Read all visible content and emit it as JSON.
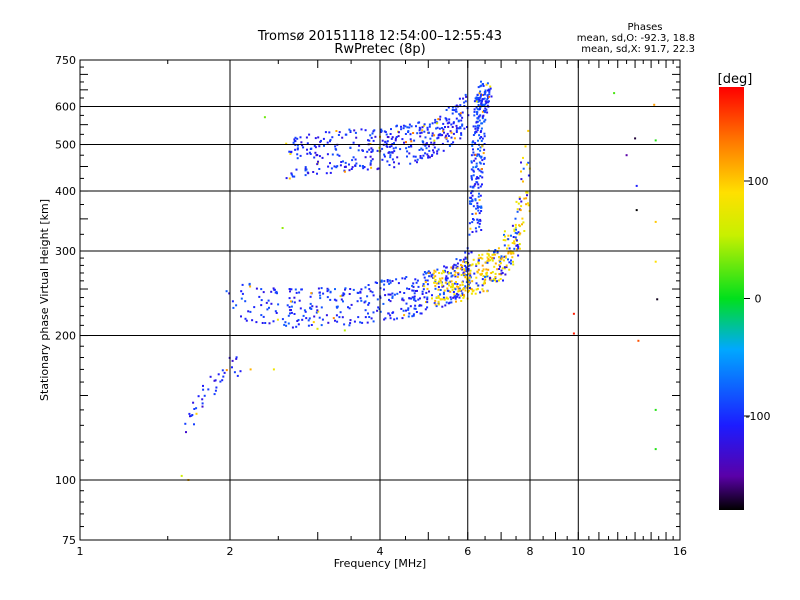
{
  "chart_data": {
    "type": "scatter",
    "title": "Tromsø 20151118 12:54:00–12:55:43",
    "subtitle": "RwPretec (8p)",
    "phase_box": {
      "heading": "Phases",
      "line1": "mean, sd,O: -92.3, 18.8",
      "line2": "mean, sd,X:  91.7, 22.3"
    },
    "xlabel": "Frequency [MHz]",
    "ylabel": "Stationary phase Virtual Height [km]",
    "xscale": "log",
    "yscale": "log",
    "xlim": [
      1,
      16
    ],
    "ylim": [
      75,
      750
    ],
    "x_ticks": [
      1,
      2,
      4,
      6,
      8,
      10,
      16
    ],
    "y_ticks": [
      75,
      100,
      200,
      300,
      400,
      500,
      600,
      750
    ],
    "x_gridlines": [
      2,
      4,
      6,
      8,
      10
    ],
    "y_gridlines": [
      100,
      200,
      300,
      400,
      500,
      600
    ],
    "grid": true,
    "colorbar": {
      "label": "[deg]",
      "range": [
        -180,
        180
      ],
      "ticks": [
        100,
        0,
        -100
      ]
    },
    "series": [
      {
        "traces": [
          {
            "kind": "o_F",
            "freq": [
              2.6,
              3.0,
              3.5,
              4.0,
              4.5,
              5.0,
              5.4,
              5.7,
              5.9,
              6.0
            ],
            "height": [
              450,
              460,
              468,
              472,
              480,
              495,
              515,
              540,
              565,
              590
            ],
            "phase": -105
          },
          {
            "kind": "o_F",
            "freq": [
              1.95,
              2.1,
              2.3,
              2.6,
              3.0,
              3.5,
              4.0,
              4.5,
              5.0,
              5.5,
              5.8,
              6.0,
              6.1
            ],
            "height": [
              235,
              226,
              220,
              218,
              219,
              222,
              226,
              231,
              237,
              246,
              255,
              268,
              290
            ],
            "phase": -100
          },
          {
            "kind": "o_F_cusp",
            "freq": [
              6.2,
              6.25,
              6.3,
              6.35,
              6.4,
              6.45,
              6.5
            ],
            "height": [
              330,
              400,
              470,
              540,
              590,
              620,
              640
            ],
            "phase": -95
          },
          {
            "kind": "x_F",
            "freq": [
              5.0,
              5.5,
              6.0,
              6.5,
              7.0,
              7.3,
              7.6,
              7.8,
              7.9
            ],
            "height": [
              240,
              245,
              252,
              262,
              275,
              292,
              320,
              380,
              480
            ],
            "phase": 95
          },
          {
            "kind": "E",
            "freq": [
              1.6,
              1.7,
              1.8,
              2.0,
              2.1
            ],
            "height": [
              120,
              135,
              150,
              165,
              172
            ],
            "phase": -110
          }
        ],
        "scattered": [
          {
            "freq": 2.35,
            "height": 570,
            "phase": 30
          },
          {
            "freq": 11.8,
            "height": 640,
            "phase": 20
          },
          {
            "freq": 14.2,
            "height": 605,
            "phase": 120
          },
          {
            "freq": 13.0,
            "height": 515,
            "phase": -170
          },
          {
            "freq": 14.3,
            "height": 510,
            "phase": 10
          },
          {
            "freq": 12.5,
            "height": 475,
            "phase": -150
          },
          {
            "freq": 13.1,
            "height": 410,
            "phase": -110
          },
          {
            "freq": 13.1,
            "height": 365,
            "phase": -180
          },
          {
            "freq": 14.3,
            "height": 345,
            "phase": 100
          },
          {
            "freq": 14.3,
            "height": 285,
            "phase": 90
          },
          {
            "freq": 14.4,
            "height": 238,
            "phase": -175
          },
          {
            "freq": 9.8,
            "height": 222,
            "phase": 170
          },
          {
            "freq": 9.8,
            "height": 202,
            "phase": 170
          },
          {
            "freq": 13.2,
            "height": 195,
            "phase": 150
          },
          {
            "freq": 14.3,
            "height": 140,
            "phase": 10
          },
          {
            "freq": 14.3,
            "height": 116,
            "phase": 10
          },
          {
            "freq": 1.6,
            "height": 102,
            "phase": 60
          },
          {
            "freq": 1.65,
            "height": 100,
            "phase": 110
          },
          {
            "freq": 2.2,
            "height": 170,
            "phase": 110
          },
          {
            "freq": 2.45,
            "height": 170,
            "phase": 80
          },
          {
            "freq": 3.4,
            "height": 205,
            "phase": 50
          },
          {
            "freq": 2.55,
            "height": 335,
            "phase": 40
          }
        ]
      }
    ]
  }
}
